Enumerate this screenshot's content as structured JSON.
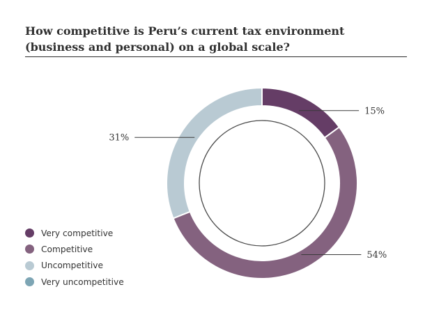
{
  "chart_data": {
    "type": "pie",
    "style": "donut",
    "title": "How competitive is Peru’s current tax environment (business and personal) on a global scale?",
    "categories": [
      "Very competitive",
      "Competitive",
      "Uncompetitive",
      "Very uncompetitive"
    ],
    "values": [
      15,
      54,
      31,
      0
    ],
    "unit": "%",
    "colors": [
      "#653d66",
      "#84627f",
      "#b9cad3",
      "#7da5b4"
    ],
    "data_labels": [
      "15%",
      "54%",
      "31%",
      ""
    ],
    "legend_position": "bottom-left"
  }
}
